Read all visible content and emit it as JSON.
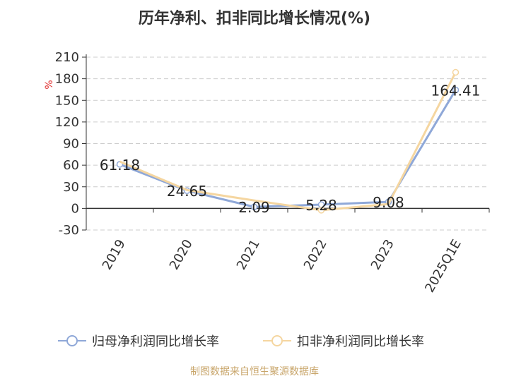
{
  "chart_data": {
    "type": "line",
    "title": "历年净利、扣非同比增长情况(%)",
    "ylabel": "%",
    "xlabel": "",
    "categories": [
      "2019",
      "2020",
      "2021",
      "2022",
      "2023",
      "2025Q1E"
    ],
    "yticks": [
      "210",
      "180",
      "150",
      "120",
      "90",
      "60",
      "30",
      "0",
      "-30"
    ],
    "ylim": [
      -30,
      210
    ],
    "grid": true,
    "legend_position": "bottom",
    "series": [
      {
        "name": "归母净利润同比增长率",
        "values": [
          61.18,
          24.65,
          2.09,
          5.28,
          9.08,
          164.41
        ],
        "labels": [
          "61.18",
          "24.65",
          "2.09",
          "5.28",
          "9.08",
          "164.41"
        ],
        "color": "#8fa8d8"
      },
      {
        "name": "扣非净利润同比增长率",
        "values": [
          65.0,
          25.5,
          11.0,
          -2.5,
          6.0,
          189.0
        ],
        "color": "#f5d6a0"
      }
    ]
  },
  "footer": "制图数据来自恒生聚源数据库"
}
